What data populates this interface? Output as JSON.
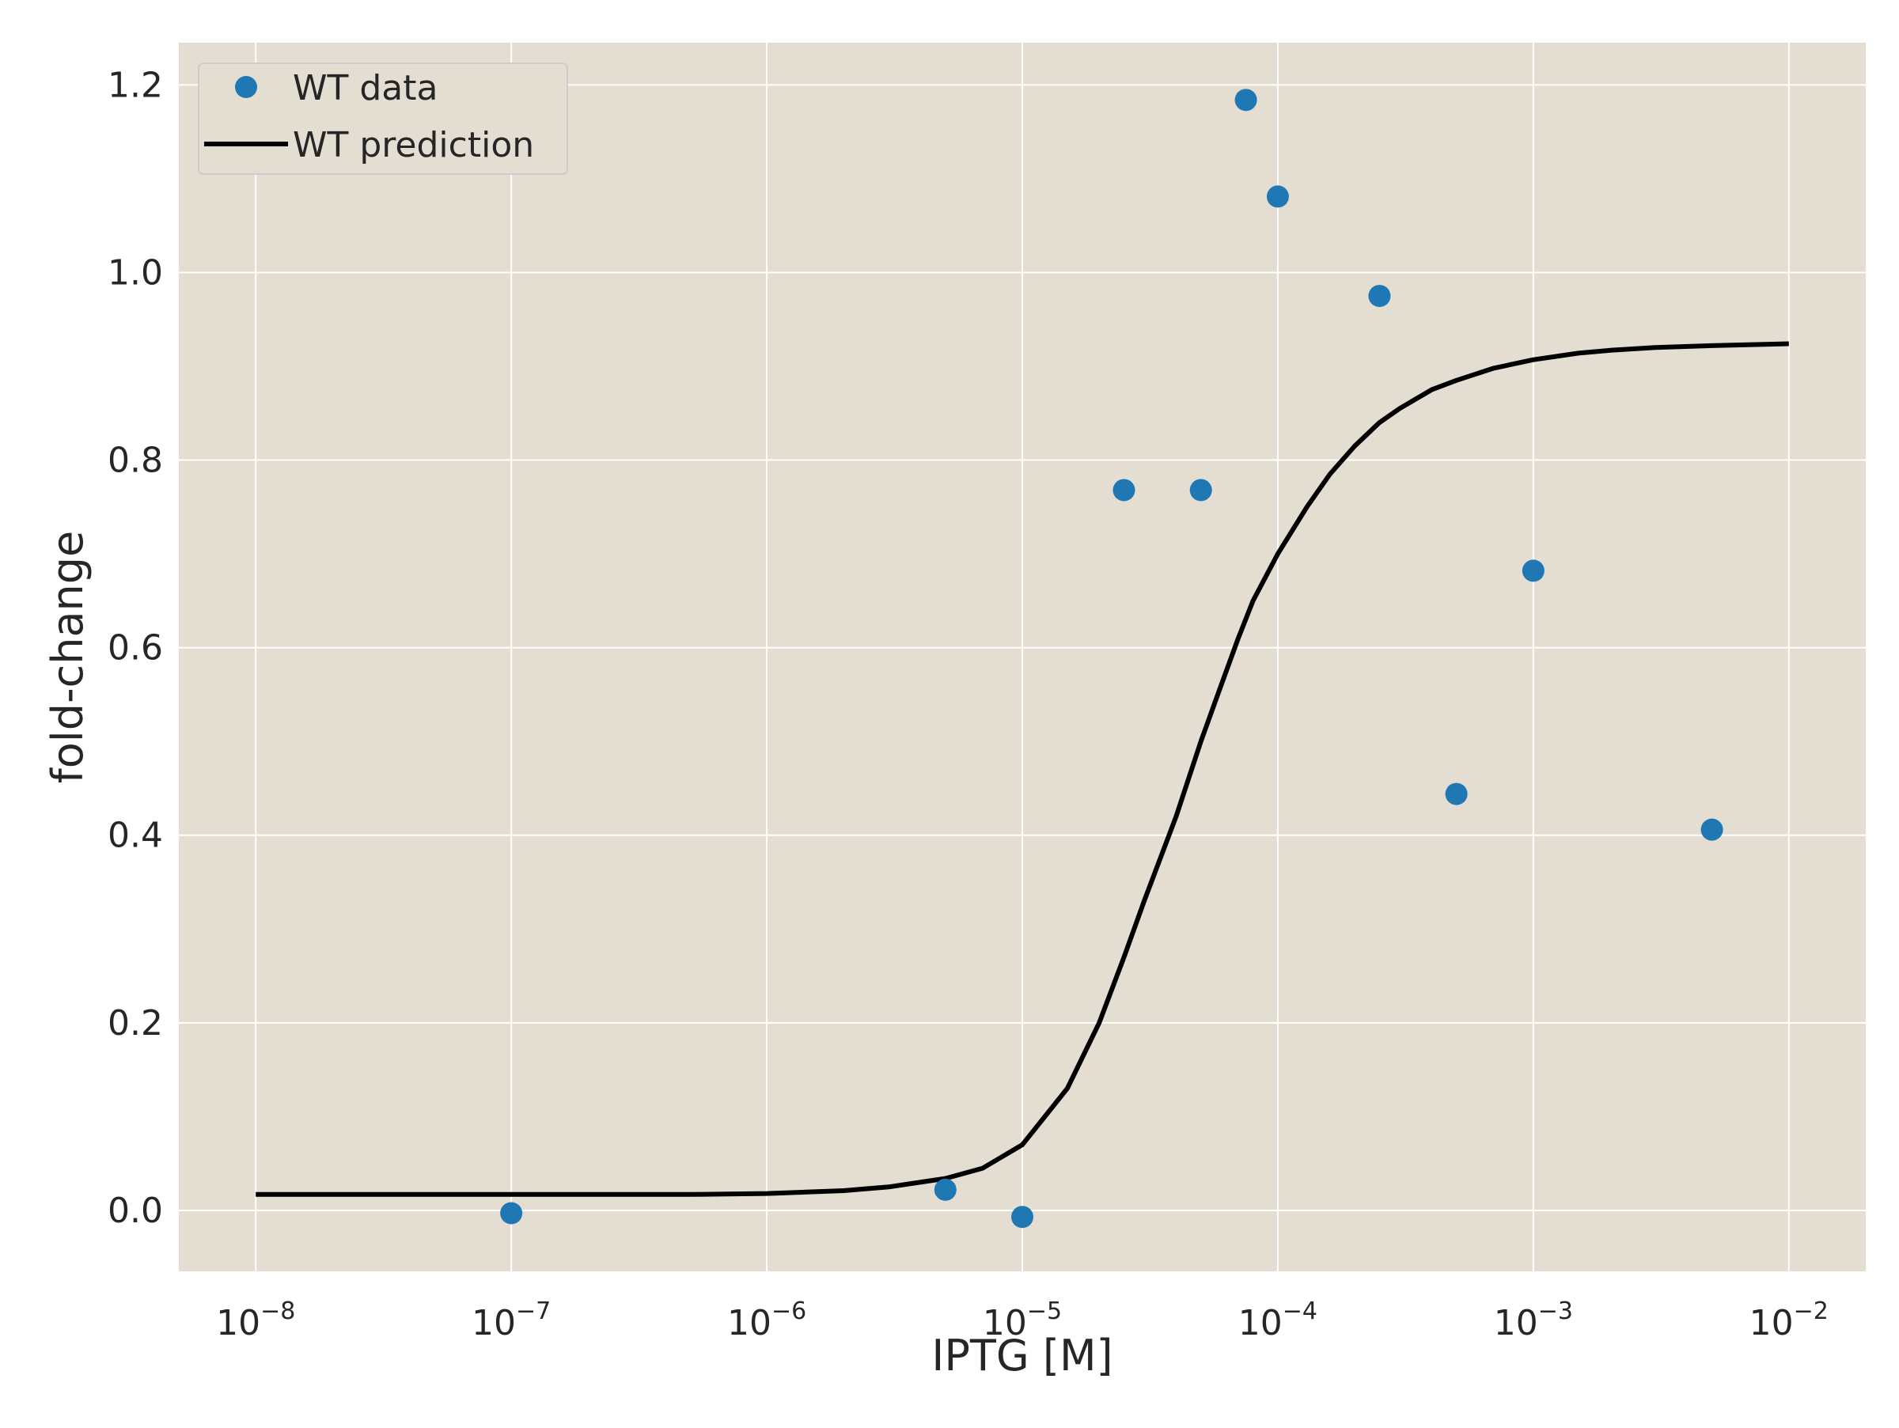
{
  "chart_data": {
    "type": "scatter",
    "title": "",
    "xlabel": "IPTG [M]",
    "ylabel": "fold-change",
    "xscale": "log",
    "xlim": [
      5e-09,
      0.02
    ],
    "ylim": [
      -0.065,
      1.245
    ],
    "grid": true,
    "legend_position": "top-left",
    "colors": {
      "plot_background": "#e3ddd2",
      "grid": "#ffffff",
      "data": "#1f77b4",
      "prediction": "#000000"
    },
    "x_ticks": [
      {
        "base": "10",
        "exp": "−8",
        "value": 1e-08
      },
      {
        "base": "10",
        "exp": "−7",
        "value": 1e-07
      },
      {
        "base": "10",
        "exp": "−6",
        "value": 1e-06
      },
      {
        "base": "10",
        "exp": "−5",
        "value": 1e-05
      },
      {
        "base": "10",
        "exp": "−4",
        "value": 0.0001
      },
      {
        "base": "10",
        "exp": "−3",
        "value": 0.001
      },
      {
        "base": "10",
        "exp": "−2",
        "value": 0.01
      }
    ],
    "y_ticks": [
      {
        "label": "0.0",
        "value": 0.0
      },
      {
        "label": "0.2",
        "value": 0.2
      },
      {
        "label": "0.4",
        "value": 0.4
      },
      {
        "label": "0.6",
        "value": 0.6
      },
      {
        "label": "0.8",
        "value": 0.8
      },
      {
        "label": "1.0",
        "value": 1.0
      },
      {
        "label": "1.2",
        "value": 1.2
      }
    ],
    "series": [
      {
        "name": "WT data",
        "kind": "scatter",
        "x": [
          1e-07,
          5e-06,
          1e-05,
          2.5e-05,
          5e-05,
          7.5e-05,
          0.0001,
          0.00025,
          0.0005,
          0.001,
          0.005
        ],
        "y": [
          -0.003,
          0.022,
          -0.007,
          0.768,
          0.768,
          1.184,
          1.081,
          0.975,
          0.444,
          0.682,
          0.406
        ]
      },
      {
        "name": "WT prediction",
        "kind": "line",
        "x": [
          1e-08,
          1e-07,
          5e-07,
          1e-06,
          2e-06,
          3e-06,
          5e-06,
          7e-06,
          1e-05,
          1.5e-05,
          2e-05,
          2.5e-05,
          3e-05,
          4e-05,
          5e-05,
          6e-05,
          7e-05,
          8e-05,
          0.0001,
          0.00013,
          0.00016,
          0.0002,
          0.00025,
          0.0003,
          0.0004,
          0.0005,
          0.0007,
          0.001,
          0.0015,
          0.002,
          0.003,
          0.005,
          0.01
        ],
        "y": [
          0.017,
          0.017,
          0.017,
          0.018,
          0.021,
          0.025,
          0.034,
          0.045,
          0.07,
          0.13,
          0.2,
          0.27,
          0.33,
          0.42,
          0.5,
          0.56,
          0.61,
          0.65,
          0.7,
          0.75,
          0.785,
          0.815,
          0.84,
          0.855,
          0.875,
          0.885,
          0.898,
          0.907,
          0.914,
          0.917,
          0.92,
          0.922,
          0.924
        ]
      }
    ]
  }
}
